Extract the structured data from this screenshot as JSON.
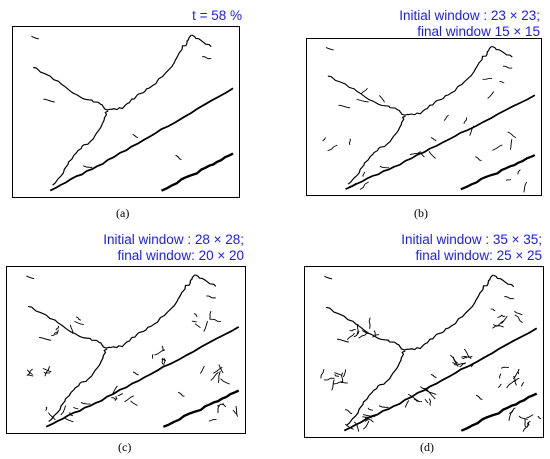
{
  "panels": {
    "a": {
      "label": "(a)",
      "title_lines": [
        "t = 58 %"
      ],
      "noise": 0
    },
    "b": {
      "label": "(b)",
      "title_lines": [
        "Initial window : 23 × 23;",
        "final window 15 × 15"
      ],
      "noise": 1
    },
    "c": {
      "label": "(c)",
      "title_lines": [
        "Initial window : 28 × 28;",
        "final window: 20 × 20"
      ],
      "noise": 2
    },
    "d": {
      "label": "(d)",
      "title_lines": [
        "Initial window : 35 × 35;",
        "final window: 25 × 25"
      ],
      "noise": 3
    }
  },
  "colors": {
    "title": "#1a1aff",
    "lines": "#000000"
  }
}
